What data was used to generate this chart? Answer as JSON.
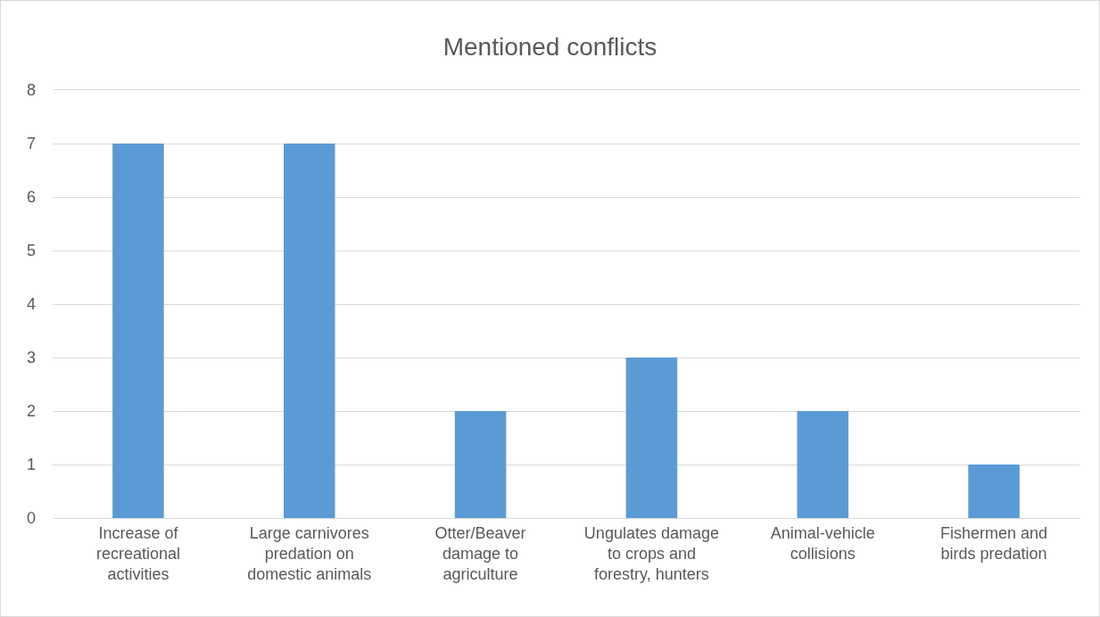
{
  "chart_data": {
    "type": "bar",
    "title": "Mentioned conflicts",
    "categories": [
      "Increase of recreational activities",
      "Large carnivores predation on domestic animals",
      "Otter/Beaver damage to agriculture",
      "Ungulates damage to crops and forestry, hunters",
      "Animal-vehicle collisions",
      "Fishermen and birds predation"
    ],
    "values": [
      7,
      7,
      2,
      3,
      2,
      1
    ],
    "color": "#5b9bd5",
    "ylim": [
      0,
      8
    ],
    "yticks": [
      0,
      1,
      2,
      3,
      4,
      5,
      6,
      7,
      8
    ],
    "grid": "y"
  }
}
